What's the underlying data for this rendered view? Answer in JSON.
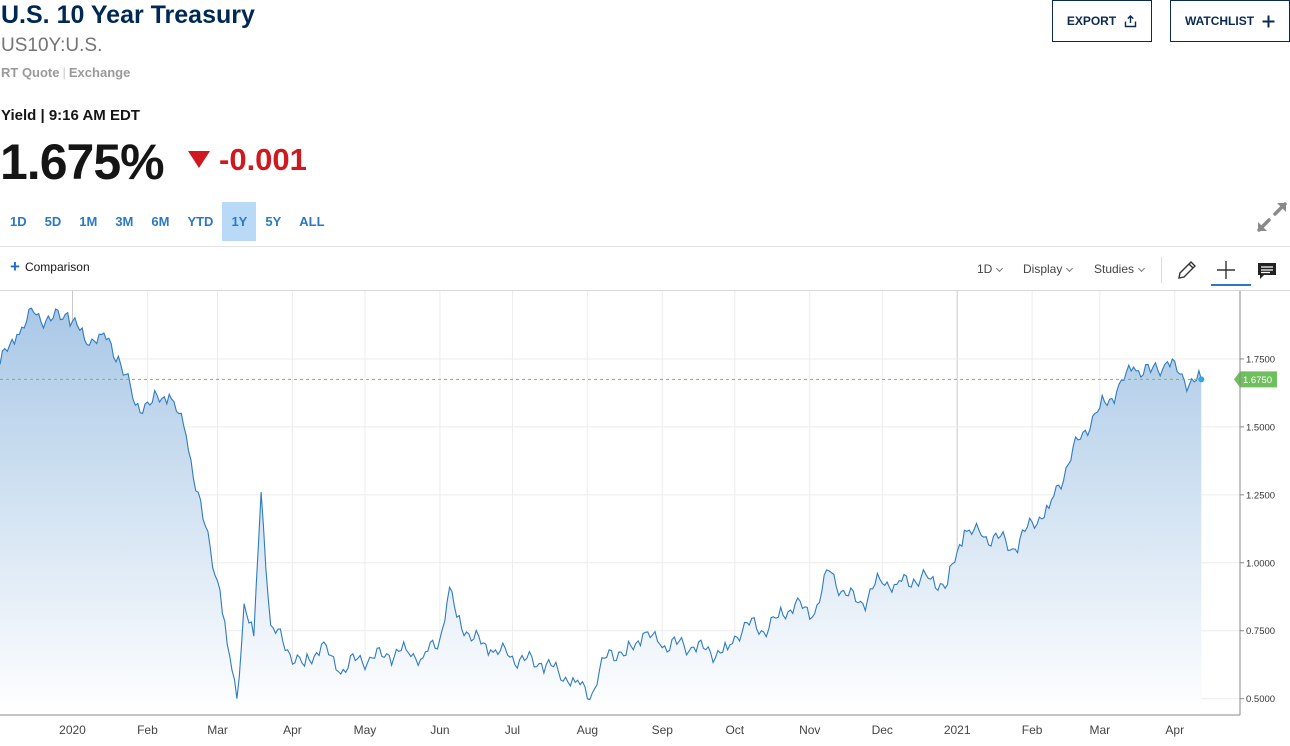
{
  "header": {
    "title": "U.S. 10 Year Treasury",
    "symbol": "US10Y:U.S.",
    "quote_type": "RT Quote",
    "exchange": "Exchange",
    "export_label": "EXPORT",
    "watchlist_label": "WATCHLIST"
  },
  "quote": {
    "yield_label": "Yield | 9:16 AM EDT",
    "last": "1.675%",
    "change": "-0.001",
    "change_direction": "down",
    "down_color": "#d0181f"
  },
  "ranges": {
    "items": [
      "1D",
      "5D",
      "1M",
      "3M",
      "6M",
      "YTD",
      "1Y",
      "5Y",
      "ALL"
    ],
    "active": "1Y"
  },
  "toolbar": {
    "comparison_label": "Comparison",
    "interval_label": "1D",
    "display_label": "Display",
    "studies_label": "Studies",
    "icons": [
      "pencil-icon",
      "crosshair-icon",
      "comment-icon"
    ]
  },
  "chart_data": {
    "type": "area",
    "series": [
      {
        "x": [
          "2019-12-02",
          "2019-12-09",
          "2019-12-16",
          "2019-12-23",
          "2019-12-30",
          "2020-01-06",
          "2020-01-13",
          "2020-01-20",
          "2020-01-27",
          "2020-02-03",
          "2020-02-10",
          "2020-02-17",
          "2020-02-24",
          "2020-03-02",
          "2020-03-05",
          "2020-03-09",
          "2020-03-12",
          "2020-03-16",
          "2020-03-19",
          "2020-03-23",
          "2020-03-30",
          "2020-04-06",
          "2020-04-13",
          "2020-04-20",
          "2020-04-27",
          "2020-05-04",
          "2020-05-11",
          "2020-05-18",
          "2020-05-25",
          "2020-06-01",
          "2020-06-05",
          "2020-06-08",
          "2020-06-15",
          "2020-06-22",
          "2020-06-29",
          "2020-07-06",
          "2020-07-13",
          "2020-07-20",
          "2020-07-27",
          "2020-08-03",
          "2020-08-10",
          "2020-08-17",
          "2020-08-24",
          "2020-08-31",
          "2020-09-07",
          "2020-09-14",
          "2020-09-21",
          "2020-09-28",
          "2020-10-05",
          "2020-10-12",
          "2020-10-19",
          "2020-10-26",
          "2020-11-02",
          "2020-11-09",
          "2020-11-16",
          "2020-11-23",
          "2020-11-30",
          "2020-12-07",
          "2020-12-14",
          "2020-12-21",
          "2020-12-28",
          "2021-01-04",
          "2021-01-11",
          "2021-01-18",
          "2021-01-25",
          "2021-02-01",
          "2021-02-08",
          "2021-02-15",
          "2021-02-22",
          "2021-03-01",
          "2021-03-08",
          "2021-03-15",
          "2021-03-22",
          "2021-03-29",
          "2021-04-05",
          "2021-04-12"
        ],
        "values": [
          1.73,
          1.84,
          1.92,
          1.89,
          1.92,
          1.82,
          1.84,
          1.76,
          1.58,
          1.59,
          1.62,
          1.47,
          1.16,
          0.9,
          0.7,
          0.5,
          0.85,
          0.73,
          1.26,
          0.77,
          0.68,
          0.62,
          0.7,
          0.6,
          0.64,
          0.65,
          0.66,
          0.68,
          0.65,
          0.72,
          0.91,
          0.8,
          0.72,
          0.68,
          0.66,
          0.64,
          0.63,
          0.6,
          0.56,
          0.52,
          0.68,
          0.66,
          0.74,
          0.7,
          0.7,
          0.69,
          0.67,
          0.68,
          0.78,
          0.75,
          0.8,
          0.85,
          0.8,
          0.97,
          0.88,
          0.85,
          0.94,
          0.92,
          0.94,
          0.94,
          0.92,
          1.12,
          1.1,
          1.09,
          1.05,
          1.15,
          1.2,
          1.35,
          1.48,
          1.57,
          1.63,
          1.72,
          1.7,
          1.74,
          1.67,
          1.675
        ]
      }
    ],
    "x_tick_labels": [
      "2020",
      "Feb",
      "Mar",
      "Apr",
      "May",
      "Jun",
      "Jul",
      "Aug",
      "Sep",
      "Oct",
      "Nov",
      "Dec",
      "2021",
      "Feb",
      "Mar",
      "Apr"
    ],
    "x_tick_dates": [
      "2020-01-01",
      "2020-02-01",
      "2020-03-01",
      "2020-04-01",
      "2020-05-01",
      "2020-06-01",
      "2020-07-01",
      "2020-08-01",
      "2020-09-01",
      "2020-10-01",
      "2020-11-01",
      "2020-12-01",
      "2021-01-01",
      "2021-02-01",
      "2021-03-01",
      "2021-04-01"
    ],
    "x_range": [
      "2019-12-02",
      "2021-04-28"
    ],
    "y_tick_labels": [
      "0.5000",
      "0.7500",
      "1.0000",
      "1.2500",
      "1.5000",
      "1.7500"
    ],
    "y_ticks": [
      0.5,
      0.75,
      1.0,
      1.25,
      1.5,
      1.75
    ],
    "ylim": [
      0.44,
      2.0
    ],
    "last_value_label": "1.6750",
    "last_value": 1.675,
    "grid": true,
    "line_color": "#2f7bc0",
    "fill_top_color": "#a9c8e6",
    "fill_bottom_color": "#ffffff",
    "last_value_color": "#6fbf5e"
  }
}
